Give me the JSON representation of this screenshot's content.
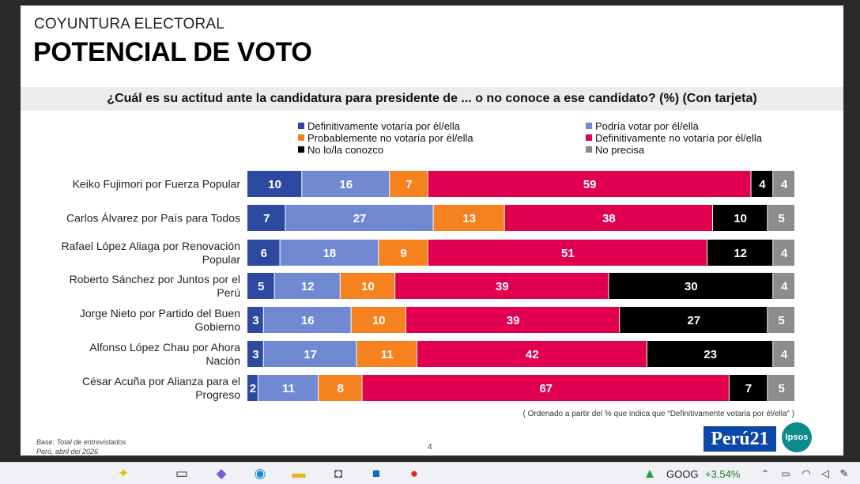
{
  "slide": {
    "section": "COYUNTURA ELECTORAL",
    "title": "POTENCIAL DE VOTO",
    "question": "¿Cuál es su actitud ante la candidatura para presidente de ... o no conoce a ese candidato? (%) (Con tarjeta)",
    "sort_note": "( Ordenado a partir del % que indica que “Definitivamente votaria por él/ella” )",
    "base_line1": "Base: Total de entrevistados",
    "base_line2": "Perú, abril del 2026",
    "page_number": "4",
    "logo_peru21": "Perú21",
    "logo_ipsos": "Ipsos"
  },
  "chart_data": {
    "type": "bar",
    "stacked": true,
    "orientation": "horizontal",
    "unit": "%",
    "categories": [
      "Keiko Fujimori por Fuerza Popular",
      "Carlos Álvarez por País para Todos",
      "Rafael López Aliaga por Renovación Popular",
      "Roberto Sánchez por Juntos por el Perú",
      "Jorge Nieto por Partido del Buen Gobierno",
      "Alfonso López Chau por Ahora Nación",
      "César Acuña por Alianza para el Progreso"
    ],
    "category_lines": [
      [
        "Keiko Fujimori por Fuerza Popular"
      ],
      [
        "Carlos Álvarez por País para Todos"
      ],
      [
        "Rafael López Aliaga por Renovación",
        "Popular"
      ],
      [
        "Roberto Sánchez por Juntos por el",
        "Perú"
      ],
      [
        "Jorge Nieto por Partido del Buen",
        "Gobierno"
      ],
      [
        "Alfonso López Chau por Ahora",
        "Nación"
      ],
      [
        "César Acuña por Alianza para el",
        "Progreso"
      ]
    ],
    "series": [
      {
        "name": "Definitivamente votaría por él/ella",
        "color": "#2e4aa0",
        "values": [
          10,
          7,
          6,
          5,
          3,
          3,
          2
        ]
      },
      {
        "name": "Podría votar por él/ella",
        "color": "#7189d3",
        "values": [
          16,
          27,
          18,
          12,
          16,
          17,
          11
        ]
      },
      {
        "name": "Probablemente no votaría por él/ella",
        "color": "#f5821f",
        "values": [
          7,
          13,
          9,
          10,
          10,
          11,
          8
        ]
      },
      {
        "name": "Definitivamente no votaría por él/ella",
        "color": "#e0004f",
        "values": [
          59,
          38,
          51,
          39,
          39,
          42,
          67
        ]
      },
      {
        "name": "No lo/la conozco",
        "color": "#000000",
        "values": [
          4,
          10,
          12,
          30,
          27,
          23,
          7
        ]
      },
      {
        "name": "No precisa",
        "color": "#8c8c8c",
        "values": [
          4,
          5,
          4,
          4,
          5,
          4,
          5
        ]
      }
    ],
    "legend_position": "top",
    "grid": false
  },
  "taskbar": {
    "stock_symbol": "GOOG",
    "stock_change": "+3.54%",
    "icons": [
      "copilot-sparkle-icon",
      "task-view-icon",
      "copilot-icon",
      "edge-icon",
      "file-explorer-icon",
      "camera-icon",
      "outlook-icon",
      "chrome-icon",
      "stock-chart-icon",
      "chevron-up-icon",
      "battery-icon",
      "wifi-icon",
      "speaker-icon",
      "pen-icon"
    ]
  }
}
